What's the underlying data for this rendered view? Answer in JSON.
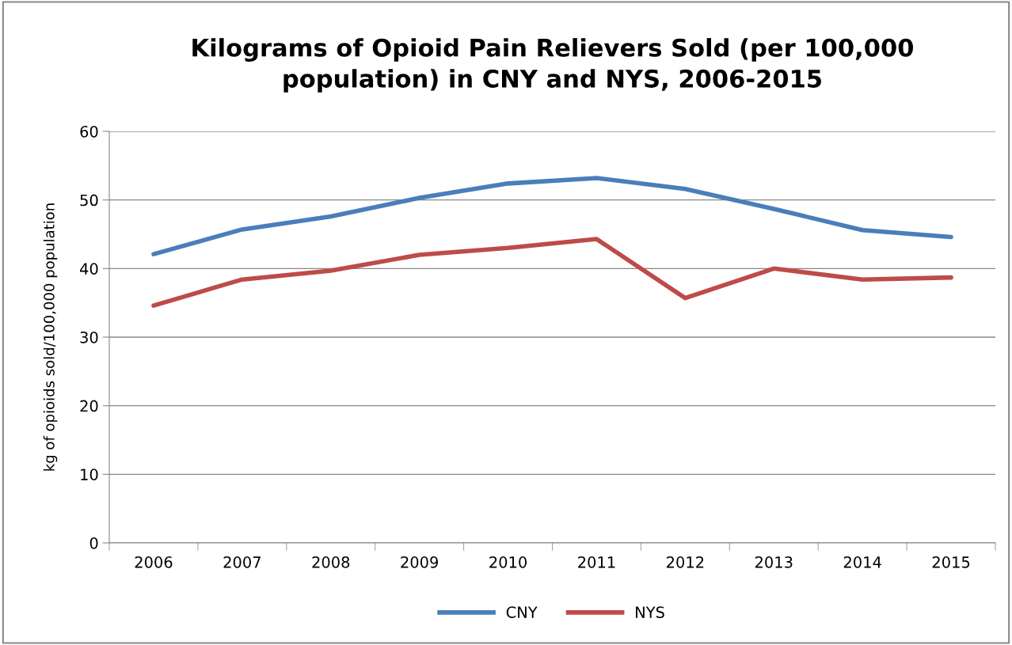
{
  "chart_data": {
    "type": "line",
    "title": "Kilograms of Opioid Pain Relievers Sold (per 100,000\npopulation) in CNY and NYS, 2006-2015",
    "ylabel": "kg of opioids sold/100,000 population",
    "categories": [
      "2006",
      "2007",
      "2008",
      "2009",
      "2010",
      "2011",
      "2012",
      "2013",
      "2014",
      "2015"
    ],
    "series": [
      {
        "name": "CNY",
        "color": "#4a7ebb",
        "values": [
          42.1,
          45.7,
          47.6,
          50.3,
          52.4,
          53.2,
          51.6,
          48.7,
          45.6,
          44.6
        ]
      },
      {
        "name": "NYS",
        "color": "#be4b48",
        "values": [
          34.6,
          38.4,
          39.7,
          42.0,
          43.0,
          44.3,
          35.7,
          40.0,
          38.4,
          38.7
        ]
      }
    ],
    "ylim": [
      0,
      60
    ],
    "yticks": [
      0,
      10,
      20,
      30,
      40,
      50,
      60
    ],
    "grid": "y",
    "legend": "bottom",
    "marker": "none",
    "line_style": "solid"
  }
}
